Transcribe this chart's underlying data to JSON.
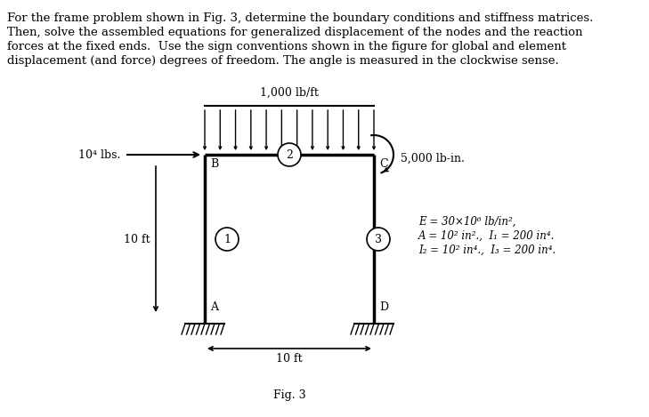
{
  "title_text": "Fig. 3",
  "para_lines": [
    "For the frame problem shown in Fig. 3, determine the boundary conditions and stiffness matrices.",
    "Then, solve the assembled equations for generalized displacement of the nodes and the reaction",
    "forces at the fixed ends.  Use the sign conventions shown in the figure for global and element",
    "displacement (and force) degrees of freedom. The angle is measured in the clockwise sense."
  ],
  "bg_color": "#ffffff",
  "frame_color": "#000000",
  "frame_linewidth": 2.5,
  "dist_load_label": "1,000 lb/ft",
  "force_label": "10⁴ lbs.",
  "moment_label": "5,000 lb-in.",
  "dim_label": "10 ft",
  "height_label": "10 ft",
  "elem1_label": "1",
  "elem2_label": "2",
  "elem3_label": "3",
  "nodeA_label": "A",
  "nodeB_label": "B",
  "nodeC_label": "C",
  "nodeD_label": "D",
  "props_line1": "E = 30×10⁶ lb/in²,",
  "props_line2": "A = 10² in².,  I₁ = 200 in⁴.",
  "props_line3": "I₂ = 10² in⁴.,  I₃ = 200 in⁴.",
  "text_color": "#000000",
  "para_fontsize": 9.5,
  "label_fontsize": 9.0,
  "props_fontsize": 8.5
}
